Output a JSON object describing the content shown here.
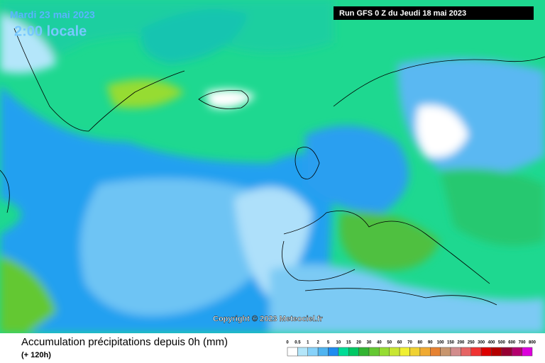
{
  "header": {
    "date": "Mardi 23 mai 2023",
    "time": "2:00 locale",
    "run": "Run GFS 0 Z du Jeudi 18 mai 2023"
  },
  "copyright": "Copyright © 2023 Meteociel.fr",
  "footer": {
    "title": "Accumulation précipitations depuis 0h (mm)",
    "subtitle": "(+ 120h)"
  },
  "legend": {
    "labels": [
      "0",
      "0.5",
      "1",
      "2",
      "5",
      "10",
      "15",
      "20",
      "30",
      "40",
      "50",
      "60",
      "70",
      "80",
      "90",
      "100",
      "150",
      "200",
      "250",
      "300",
      "400",
      "500",
      "600",
      "700",
      "800"
    ],
    "colors": [
      "#ffffff",
      "#b4e6fa",
      "#87d2fa",
      "#50b4f0",
      "#1e8cf0",
      "#00dc96",
      "#00c864",
      "#32b432",
      "#64c832",
      "#96dc32",
      "#c8e632",
      "#f0f032",
      "#f0d232",
      "#f0aa32",
      "#e68232",
      "#c8966e",
      "#d28c8c",
      "#e66464",
      "#f03232",
      "#dc0000",
      "#b40000",
      "#960032",
      "#b4006e",
      "#dc00dc"
    ]
  }
}
